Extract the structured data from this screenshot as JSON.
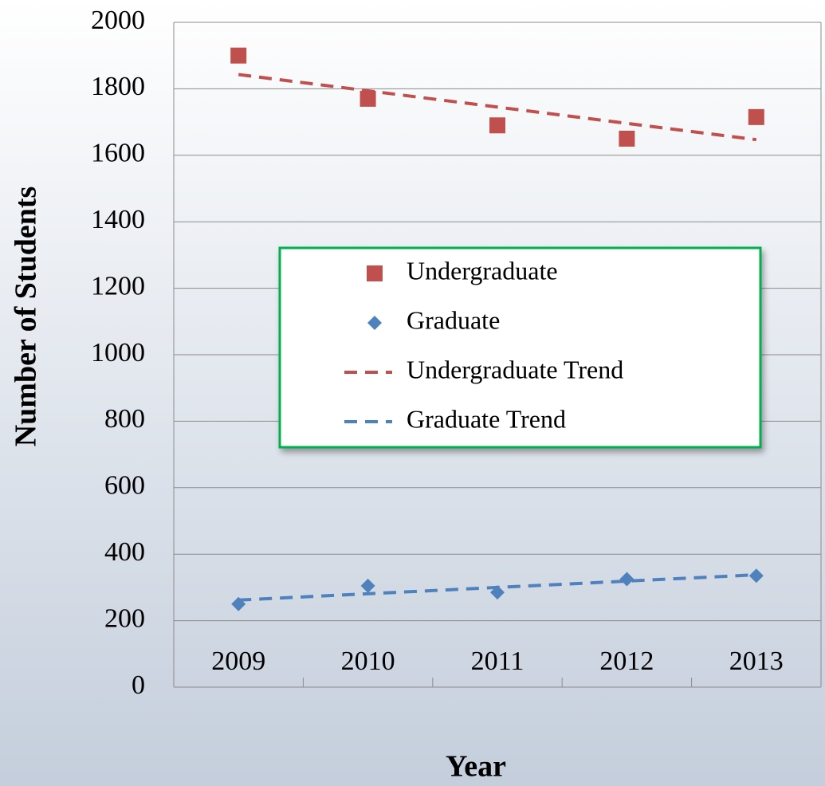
{
  "chart_data": {
    "type": "scatter",
    "x_label": "Year",
    "y_label": "Number of Students",
    "categories": [
      "2009",
      "2010",
      "2011",
      "2012",
      "2013"
    ],
    "series": [
      {
        "name": "Undergraduate",
        "color": "#c0504d",
        "marker": "square",
        "values": [
          1900,
          1770,
          1690,
          1650,
          1715
        ]
      },
      {
        "name": "Graduate",
        "color": "#4f81bd",
        "marker": "diamond",
        "values": [
          250,
          305,
          285,
          325,
          335
        ]
      }
    ],
    "trendlines": [
      {
        "name": "Undergraduate Trend",
        "series": 0,
        "type": "linear",
        "color": "#c0504d"
      },
      {
        "name": "Graduate Trend",
        "series": 1,
        "type": "linear",
        "color": "#4f81bd"
      }
    ],
    "ylim": [
      0,
      2000
    ],
    "yticks": [
      0,
      200,
      400,
      600,
      800,
      1000,
      1200,
      1400,
      1600,
      1800,
      2000
    ],
    "grid": true,
    "legend": "center"
  }
}
